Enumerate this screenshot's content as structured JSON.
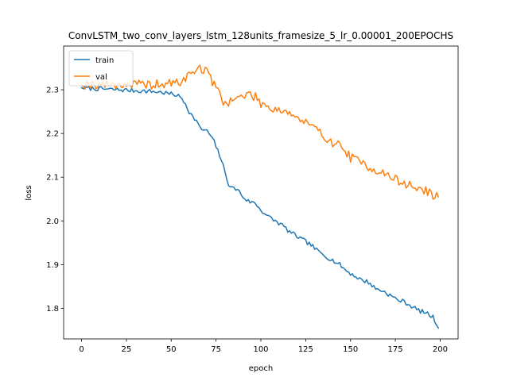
{
  "chart_data": {
    "type": "line",
    "title": "ConvLSTM_two_conv_layers_lstm_128units_framesize_5_lr_0.00001_200EPOCHS",
    "xlabel": "epoch",
    "ylabel": "loss",
    "xlim": [
      -10,
      210
    ],
    "ylim": [
      1.73,
      2.4
    ],
    "xticks": [
      0,
      25,
      50,
      75,
      100,
      125,
      150,
      175,
      200
    ],
    "yticks": [
      1.8,
      1.9,
      2.0,
      2.1,
      2.2,
      2.3
    ],
    "ytick_labels": [
      "1.8",
      "1.9",
      "2.0",
      "2.1",
      "2.2",
      "2.3"
    ],
    "legend": {
      "placement": "upper-left"
    },
    "series": [
      {
        "name": "train",
        "color": "#1f77b4",
        "keypoints": [
          [
            0,
            2.305
          ],
          [
            5,
            2.303
          ],
          [
            10,
            2.302
          ],
          [
            15,
            2.301
          ],
          [
            20,
            2.3
          ],
          [
            25,
            2.299
          ],
          [
            30,
            2.298
          ],
          [
            35,
            2.297
          ],
          [
            40,
            2.296
          ],
          [
            45,
            2.294
          ],
          [
            50,
            2.29
          ],
          [
            53,
            2.288
          ],
          [
            56,
            2.28
          ],
          [
            58,
            2.268
          ],
          [
            60,
            2.25
          ],
          [
            62,
            2.238
          ],
          [
            64,
            2.23
          ],
          [
            66,
            2.212
          ],
          [
            70,
            2.205
          ],
          [
            72,
            2.195
          ],
          [
            74,
            2.18
          ],
          [
            76,
            2.16
          ],
          [
            78,
            2.14
          ],
          [
            80,
            2.11
          ],
          [
            82,
            2.085
          ],
          [
            84,
            2.075
          ],
          [
            87,
            2.072
          ],
          [
            90,
            2.055
          ],
          [
            93,
            2.045
          ],
          [
            97,
            2.04
          ],
          [
            100,
            2.025
          ],
          [
            104,
            2.01
          ],
          [
            108,
            2.0
          ],
          [
            112,
            1.99
          ],
          [
            116,
            1.975
          ],
          [
            120,
            1.965
          ],
          [
            124,
            1.955
          ],
          [
            128,
            1.945
          ],
          [
            132,
            1.93
          ],
          [
            136,
            1.92
          ],
          [
            140,
            1.91
          ],
          [
            144,
            1.9
          ],
          [
            148,
            1.885
          ],
          [
            152,
            1.875
          ],
          [
            156,
            1.865
          ],
          [
            160,
            1.86
          ],
          [
            164,
            1.845
          ],
          [
            168,
            1.84
          ],
          [
            172,
            1.83
          ],
          [
            176,
            1.82
          ],
          [
            180,
            1.815
          ],
          [
            184,
            1.805
          ],
          [
            188,
            1.795
          ],
          [
            192,
            1.79
          ],
          [
            196,
            1.78
          ],
          [
            199,
            1.755
          ]
        ],
        "noise": 0.005,
        "seed": 7
      },
      {
        "name": "val",
        "color": "#ff7f0e",
        "keypoints": [
          [
            0,
            2.312
          ],
          [
            5,
            2.313
          ],
          [
            10,
            2.312
          ],
          [
            15,
            2.313
          ],
          [
            20,
            2.312
          ],
          [
            25,
            2.313
          ],
          [
            30,
            2.312
          ],
          [
            35,
            2.311
          ],
          [
            40,
            2.312
          ],
          [
            45,
            2.312
          ],
          [
            50,
            2.314
          ],
          [
            55,
            2.318
          ],
          [
            58,
            2.325
          ],
          [
            60,
            2.335
          ],
          [
            63,
            2.345
          ],
          [
            66,
            2.35
          ],
          [
            68,
            2.345
          ],
          [
            70,
            2.34
          ],
          [
            72,
            2.33
          ],
          [
            74,
            2.31
          ],
          [
            76,
            2.3
          ],
          [
            78,
            2.28
          ],
          [
            80,
            2.27
          ],
          [
            83,
            2.275
          ],
          [
            86,
            2.28
          ],
          [
            90,
            2.285
          ],
          [
            94,
            2.29
          ],
          [
            98,
            2.28
          ],
          [
            100,
            2.27
          ],
          [
            105,
            2.26
          ],
          [
            110,
            2.255
          ],
          [
            115,
            2.25
          ],
          [
            120,
            2.235
          ],
          [
            125,
            2.225
          ],
          [
            130,
            2.21
          ],
          [
            135,
            2.195
          ],
          [
            140,
            2.18
          ],
          [
            145,
            2.17
          ],
          [
            150,
            2.145
          ],
          [
            155,
            2.135
          ],
          [
            160,
            2.125
          ],
          [
            165,
            2.115
          ],
          [
            170,
            2.105
          ],
          [
            175,
            2.095
          ],
          [
            180,
            2.085
          ],
          [
            185,
            2.078
          ],
          [
            190,
            2.072
          ],
          [
            195,
            2.062
          ],
          [
            199,
            2.055
          ]
        ],
        "noise": 0.011,
        "seed": 19
      }
    ]
  }
}
